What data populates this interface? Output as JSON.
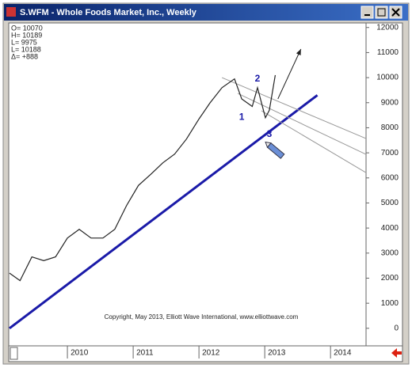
{
  "chart_data": {
    "type": "line",
    "title": "S.WFM - Whole Foods Market, Inc., Weekly",
    "info": [
      "O= 10070",
      "H= 10189",
      "L= 9975",
      "L= 10188",
      "Δ= +888"
    ],
    "series": [
      {
        "color": "#222222",
        "x": [
          2009.12,
          2009.28,
          2009.46,
          2009.64,
          2009.82,
          2010.0,
          2010.18,
          2010.36,
          2010.54,
          2010.72,
          2010.9,
          2011.08,
          2011.27,
          2011.45,
          2011.63,
          2011.81,
          2012.0,
          2012.17,
          2012.35,
          2012.54,
          2012.65,
          2012.81,
          2012.89,
          2013.01,
          2013.07,
          2013.16
        ],
        "values": [
          2200,
          1900,
          2850,
          2700,
          2850,
          3600,
          3950,
          3600,
          3600,
          3950,
          4900,
          5700,
          6150,
          6600,
          6950,
          7550,
          8350,
          9000,
          9600,
          9950,
          9150,
          8850,
          9600,
          8400,
          8700,
          10100
        ]
      }
    ],
    "lines": [
      {
        "color": "#1a1aa8",
        "x": [
          2009.12,
          2013.8
        ],
        "values": [
          0,
          9300
        ]
      },
      {
        "color": "#999999",
        "x": [
          2012.35,
          2014.54
        ],
        "values": [
          10000,
          7570
        ]
      },
      {
        "color": "#999999",
        "x": [
          2012.59,
          2014.54
        ],
        "values": [
          9370,
          6940
        ]
      },
      {
        "color": "#999999",
        "x": [
          2012.95,
          2014.54
        ],
        "values": [
          8680,
          6210
        ]
      },
      {
        "color": "#222222",
        "x": [
          2013.2,
          2013.55
        ],
        "values": [
          9150,
          11140
        ]
      }
    ],
    "wave_labels": [
      {
        "text": "1",
        "x": 2012.65,
        "y": 8420
      },
      {
        "text": "2",
        "x": 2012.89,
        "y": 9940
      },
      {
        "text": "3",
        "x": 2013.07,
        "y": 7730
      }
    ],
    "annotation": "Copyright, May 2013, Elliott Wave International, www.elliottwave.com",
    "xlim": [
      2009.12,
      2014.54
    ],
    "xticks": [
      2010,
      2011,
      2012,
      2013,
      2014
    ],
    "ylim": [
      -700,
      12150
    ],
    "yticks": [
      0,
      1000,
      2000,
      3000,
      4000,
      5000,
      6000,
      7000,
      8000,
      9000,
      10000,
      11000,
      12000
    ]
  }
}
